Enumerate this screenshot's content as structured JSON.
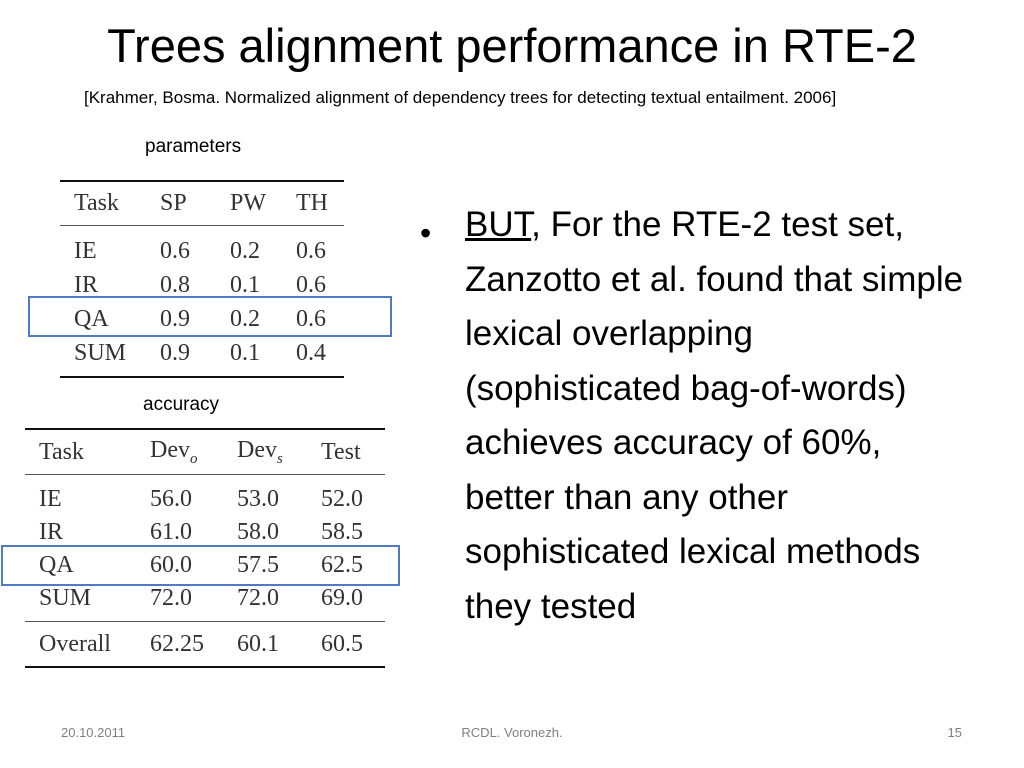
{
  "slide": {
    "title": "Trees alignment performance in RTE-2",
    "citation": "[Krahmer, Bosma. Normalized alignment of dependency trees for detecting textual entailment. 2006]"
  },
  "parameters_table": {
    "caption": "parameters",
    "headers": [
      "Task",
      "SP",
      "PW",
      "TH"
    ],
    "rows": [
      [
        "IE",
        "0.6",
        "0.2",
        "0.6"
      ],
      [
        "IR",
        "0.8",
        "0.1",
        "0.6"
      ],
      [
        "QA",
        "0.9",
        "0.2",
        "0.6"
      ],
      [
        "SUM",
        "0.9",
        "0.1",
        "0.4"
      ]
    ],
    "highlighted_row": "QA"
  },
  "accuracy_table": {
    "caption": "accuracy",
    "headers": {
      "task": "Task",
      "dev_o": "Dev",
      "dev_o_sub": "o",
      "dev_s": "Dev",
      "dev_s_sub": "s",
      "test": "Test"
    },
    "rows": [
      [
        "IE",
        "56.0",
        "53.0",
        "52.0"
      ],
      [
        "IR",
        "61.0",
        "58.0",
        "58.5"
      ],
      [
        "QA",
        "60.0",
        "57.5",
        "62.5"
      ],
      [
        "SUM",
        "72.0",
        "72.0",
        "69.0"
      ]
    ],
    "overall": [
      "Overall",
      "62.25",
      "60.1",
      "60.5"
    ],
    "highlighted_row": "QA"
  },
  "bullet": {
    "marker": "•",
    "emphasis": "BUT",
    "text": ", For the RTE-2 test set, Zanzotto et al. found that simple lexical overlapping (sophisticated bag-of-words) achieves accuracy of 60%, better than any other sophisticated lexical methods they tested"
  },
  "footer": {
    "date": "20.10.2011",
    "organization": "RCDL. Voronezh.",
    "page_number": "15"
  },
  "colors": {
    "highlight_box": "#4f7bc4",
    "footer_text": "#7f7f7f"
  }
}
